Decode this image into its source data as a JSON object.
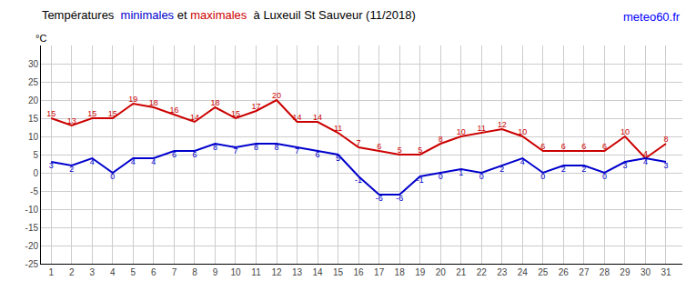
{
  "chart_data": {
    "type": "line",
    "title": "Températures  minimales et maximales  à Luxeuil St Sauveur (11/2018)",
    "ylabel": "°C",
    "annotations": [
      {
        "text": "meteo60.fr",
        "color": "blue"
      }
    ],
    "x": [
      1,
      2,
      3,
      4,
      5,
      6,
      7,
      8,
      9,
      10,
      11,
      12,
      13,
      14,
      15,
      16,
      17,
      18,
      19,
      20,
      21,
      22,
      23,
      24,
      25,
      26,
      27,
      28,
      29,
      30,
      31
    ],
    "series": [
      {
        "name": "maximales",
        "color": "#cc0000",
        "values": [
          15,
          13,
          15,
          15,
          19,
          18,
          16,
          14,
          18,
          15,
          17,
          20,
          14,
          14,
          11,
          7,
          6,
          5,
          5,
          8,
          10,
          11,
          12,
          10,
          6,
          6,
          6,
          6,
          10,
          4,
          8
        ]
      },
      {
        "name": "minimales",
        "color": "#0000cc",
        "values": [
          3,
          2,
          4,
          0,
          4,
          4,
          6,
          6,
          8,
          7,
          8,
          8,
          7,
          6,
          5,
          -1,
          -6,
          -6,
          -1,
          0,
          1,
          0,
          2,
          4,
          0,
          2,
          2,
          0,
          3,
          4,
          3
        ]
      }
    ],
    "xlim": [
      0.5,
      31.8
    ],
    "xticks": [
      1,
      2,
      3,
      4,
      5,
      6,
      7,
      8,
      9,
      10,
      11,
      12,
      13,
      14,
      15,
      16,
      17,
      18,
      19,
      20,
      21,
      22,
      23,
      24,
      25,
      26,
      27,
      28,
      29,
      30,
      31
    ],
    "ylim": [
      -25,
      35
    ],
    "yticks": [
      -25,
      -20,
      -15,
      -10,
      -5,
      0,
      5,
      10,
      15,
      20,
      25,
      30
    ],
    "grid": true,
    "data_labels": true
  }
}
